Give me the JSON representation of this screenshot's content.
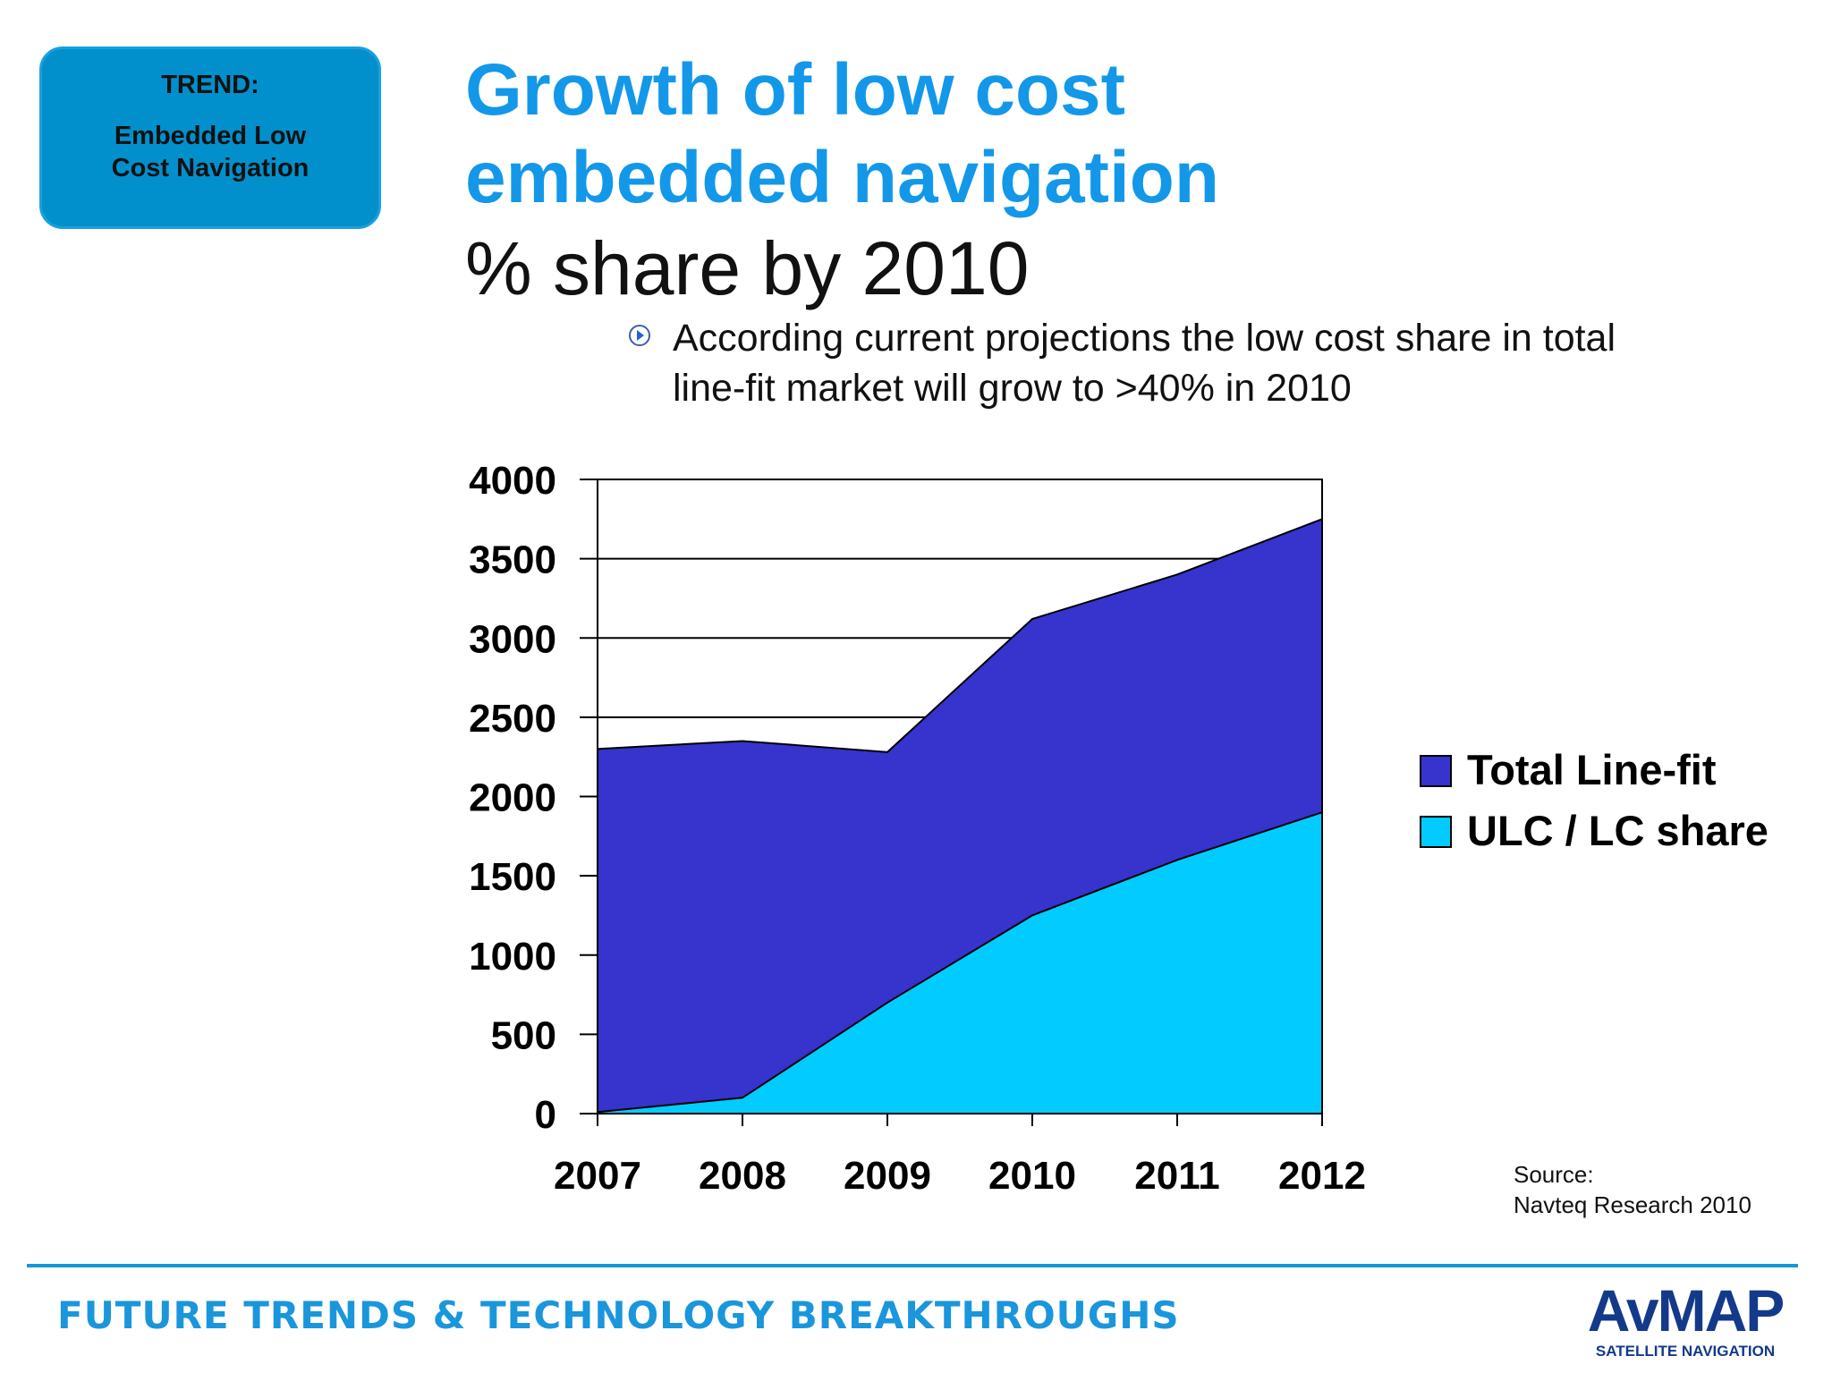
{
  "trend": {
    "label": "TREND:",
    "text": "Embedded Low Cost Navigation"
  },
  "title": {
    "line1": "Growth of low cost",
    "line2": "embedded navigation"
  },
  "subtitle": "% share by 2010",
  "bullet": {
    "icon": "play-circle-icon",
    "text": "According current projections the low cost share in total line-fit market will grow to >40% in 2010"
  },
  "source": {
    "label": "Source:",
    "text": "Navteq Research 2010"
  },
  "footer": {
    "text": "FUTURE TRENDS & TECHNOLOGY BREAKTHROUGHS"
  },
  "logo": {
    "name": "AvMAP",
    "tagline": "SATELLITE NAVIGATION"
  },
  "colors": {
    "title": "#1398e9",
    "trend_box": "#0290cc",
    "total": "#3634cc",
    "ulc": "#02ccff",
    "footer": "#1a96dc",
    "logo": "#133a8a"
  },
  "chart_data": {
    "type": "area",
    "categories": [
      "2007",
      "2008",
      "2009",
      "2010",
      "2011",
      "2012"
    ],
    "series": [
      {
        "name": "Total Line-fit",
        "color": "#3634cc",
        "values": [
          2300,
          2350,
          2280,
          3120,
          3400,
          3750
        ]
      },
      {
        "name": "ULC / LC share",
        "color": "#02ccff",
        "values": [
          10,
          100,
          700,
          1250,
          1600,
          1900
        ]
      }
    ],
    "ylim": [
      0,
      4000
    ],
    "yticks": [
      "0",
      "500",
      "1000",
      "1500",
      "2000",
      "2500",
      "3000",
      "3500",
      "4000"
    ],
    "grid": true,
    "legend_position": "right"
  }
}
